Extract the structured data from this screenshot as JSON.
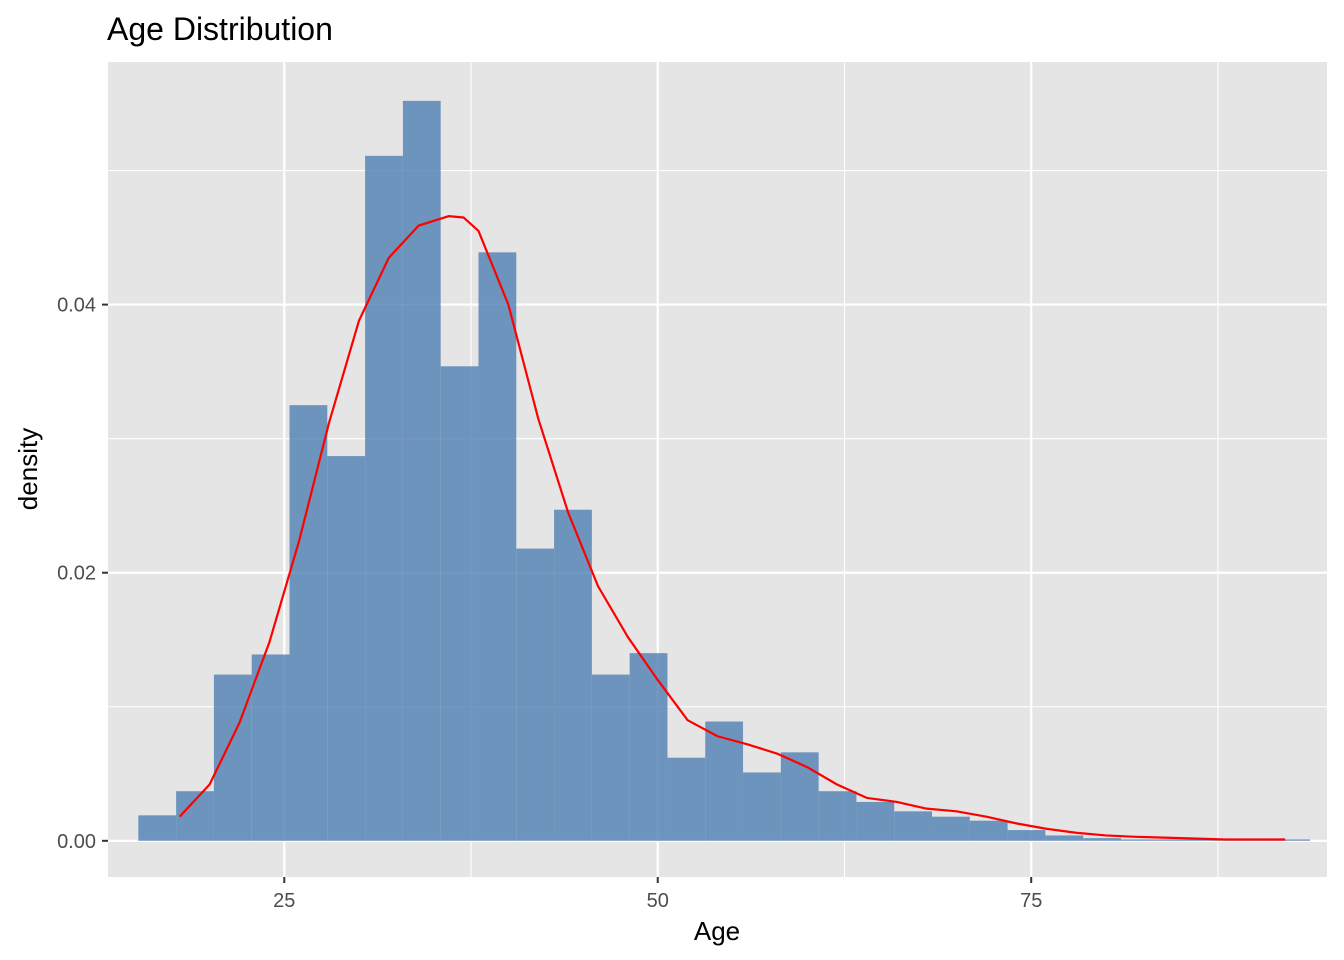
{
  "chart_data": {
    "type": "bar",
    "title": "Age Distribution",
    "xlabel": "Age",
    "ylabel": "density",
    "xlim": [
      13.2,
      94.8
    ],
    "ylim": [
      -0.0027,
      0.0581
    ],
    "x_ticks": [
      {
        "value": 25,
        "label": "25"
      },
      {
        "value": 50,
        "label": "50"
      },
      {
        "value": 75,
        "label": "75"
      }
    ],
    "x_minor_ticks": [
      12.5,
      37.5,
      62.5,
      87.5
    ],
    "y_ticks": [
      {
        "value": 0.0,
        "label": "0.00"
      },
      {
        "value": 0.02,
        "label": "0.02"
      },
      {
        "value": 0.04,
        "label": "0.04"
      }
    ],
    "y_minor_ticks": [
      0.01,
      0.03,
      0.05
    ],
    "grid": true,
    "panel_background": "#e5e5e5",
    "grid_color": "#ffffff",
    "bar_color": "#4f7fb3",
    "bar_opacity": 0.8,
    "density_color": "#ff0000",
    "histogram": {
      "bin_start": 12.7,
      "bin_width": 2.53,
      "bins": [
        {
          "x0": 12.7,
          "x1": 15.23,
          "density": 0.0
        },
        {
          "x0": 15.23,
          "x1": 17.76,
          "density": 0.0019
        },
        {
          "x0": 17.76,
          "x1": 20.29,
          "density": 0.0037
        },
        {
          "x0": 20.29,
          "x1": 22.82,
          "density": 0.0124
        },
        {
          "x0": 22.82,
          "x1": 25.35,
          "density": 0.0139
        },
        {
          "x0": 25.35,
          "x1": 27.88,
          "density": 0.0325
        },
        {
          "x0": 27.88,
          "x1": 30.41,
          "density": 0.0287
        },
        {
          "x0": 30.41,
          "x1": 32.94,
          "density": 0.0511
        },
        {
          "x0": 32.94,
          "x1": 35.47,
          "density": 0.0552
        },
        {
          "x0": 35.47,
          "x1": 38.0,
          "density": 0.0354
        },
        {
          "x0": 38.0,
          "x1": 40.53,
          "density": 0.0439
        },
        {
          "x0": 40.53,
          "x1": 43.06,
          "density": 0.0218
        },
        {
          "x0": 43.06,
          "x1": 45.59,
          "density": 0.0247
        },
        {
          "x0": 45.59,
          "x1": 48.12,
          "density": 0.0124
        },
        {
          "x0": 48.12,
          "x1": 50.65,
          "density": 0.014
        },
        {
          "x0": 50.65,
          "x1": 53.18,
          "density": 0.0062
        },
        {
          "x0": 53.18,
          "x1": 55.71,
          "density": 0.0089
        },
        {
          "x0": 55.71,
          "x1": 58.24,
          "density": 0.0051
        },
        {
          "x0": 58.24,
          "x1": 60.77,
          "density": 0.0066
        },
        {
          "x0": 60.77,
          "x1": 63.3,
          "density": 0.0037
        },
        {
          "x0": 63.3,
          "x1": 65.83,
          "density": 0.0029
        },
        {
          "x0": 65.83,
          "x1": 68.36,
          "density": 0.0022
        },
        {
          "x0": 68.36,
          "x1": 70.89,
          "density": 0.0018
        },
        {
          "x0": 70.89,
          "x1": 73.42,
          "density": 0.0015
        },
        {
          "x0": 73.42,
          "x1": 75.95,
          "density": 0.0008
        },
        {
          "x0": 75.95,
          "x1": 78.48,
          "density": 0.0004
        },
        {
          "x0": 78.48,
          "x1": 81.01,
          "density": 0.0002
        },
        {
          "x0": 81.01,
          "x1": 83.54,
          "density": 0.0001
        },
        {
          "x0": 83.54,
          "x1": 86.07,
          "density": 0.0001
        },
        {
          "x0": 86.07,
          "x1": 88.6,
          "density": 0.0001
        },
        {
          "x0": 88.6,
          "x1": 91.13,
          "density": 0.0001
        },
        {
          "x0": 91.13,
          "x1": 93.66,
          "density": 0.0001
        }
      ]
    },
    "density_curve": {
      "x": [
        18,
        20,
        22,
        24,
        26,
        28,
        30,
        32,
        34,
        36,
        37,
        38,
        40,
        42,
        44,
        46,
        48,
        50,
        52,
        54,
        56,
        58,
        60,
        62,
        64,
        66,
        68,
        70,
        72,
        74,
        76,
        78,
        80,
        82,
        85,
        88,
        90,
        92
      ],
      "y": [
        0.0018,
        0.0042,
        0.0088,
        0.0148,
        0.0224,
        0.0312,
        0.0388,
        0.0435,
        0.0459,
        0.0466,
        0.0465,
        0.0455,
        0.04,
        0.0315,
        0.0245,
        0.019,
        0.0152,
        0.012,
        0.009,
        0.0078,
        0.0072,
        0.0065,
        0.0055,
        0.0042,
        0.0032,
        0.0029,
        0.0024,
        0.0022,
        0.0018,
        0.0013,
        0.0009,
        0.0006,
        0.0004,
        0.0003,
        0.0002,
        0.0001,
        0.0001,
        0.0001
      ]
    }
  }
}
